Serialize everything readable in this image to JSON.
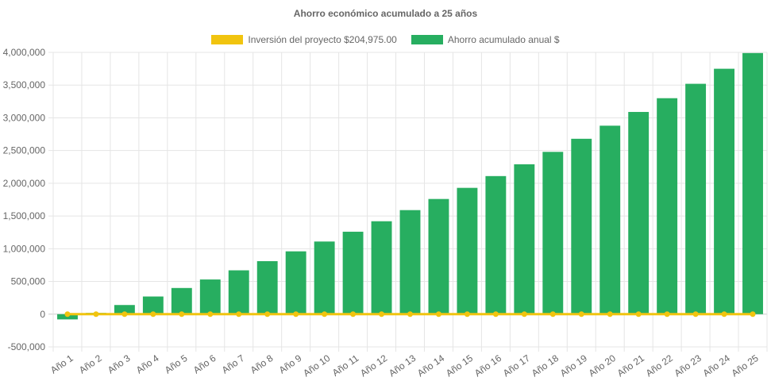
{
  "chart_data": {
    "type": "bar",
    "title": "Ahorro económico acumulado a 25 años",
    "categories": [
      "Año 1",
      "Año 2",
      "Año 3",
      "Año 4",
      "Año 5",
      "Año 6",
      "Año 7",
      "Año 8",
      "Año 9",
      "Año 10",
      "Año 11",
      "Año 12",
      "Año 13",
      "Año 14",
      "Año 15",
      "Año 16",
      "Año 17",
      "Año 18",
      "Año 19",
      "Año 20",
      "Año 21",
      "Año 22",
      "Año 23",
      "Año 24",
      "Año 25"
    ],
    "series": [
      {
        "name": "Inversión del proyecto $204,975.00",
        "type": "line",
        "color": "#F1C40F",
        "values": [
          0,
          0,
          0,
          0,
          0,
          0,
          0,
          0,
          0,
          0,
          0,
          0,
          0,
          0,
          0,
          0,
          0,
          0,
          0,
          0,
          0,
          0,
          0,
          0,
          0
        ]
      },
      {
        "name": "Ahorro acumulado anual $",
        "type": "bar",
        "color": "#27AE60",
        "values": [
          -80000,
          20000,
          140000,
          270000,
          400000,
          530000,
          670000,
          810000,
          960000,
          1110000,
          1260000,
          1420000,
          1590000,
          1760000,
          1930000,
          2110000,
          2290000,
          2480000,
          2680000,
          2880000,
          3090000,
          3300000,
          3520000,
          3750000,
          3990000
        ]
      }
    ],
    "ylim": [
      -500000,
      4000000
    ],
    "yticks": [
      "4,000,000",
      "3,500,000",
      "3,000,000",
      "2,500,000",
      "2,000,000",
      "1,500,000",
      "1,000,000",
      "500,000",
      "0",
      "-500,000"
    ],
    "ytick_values": [
      4000000,
      3500000,
      3000000,
      2500000,
      2000000,
      1500000,
      1000000,
      500000,
      0,
      -500000
    ],
    "grid": true,
    "legend_position": "top"
  }
}
